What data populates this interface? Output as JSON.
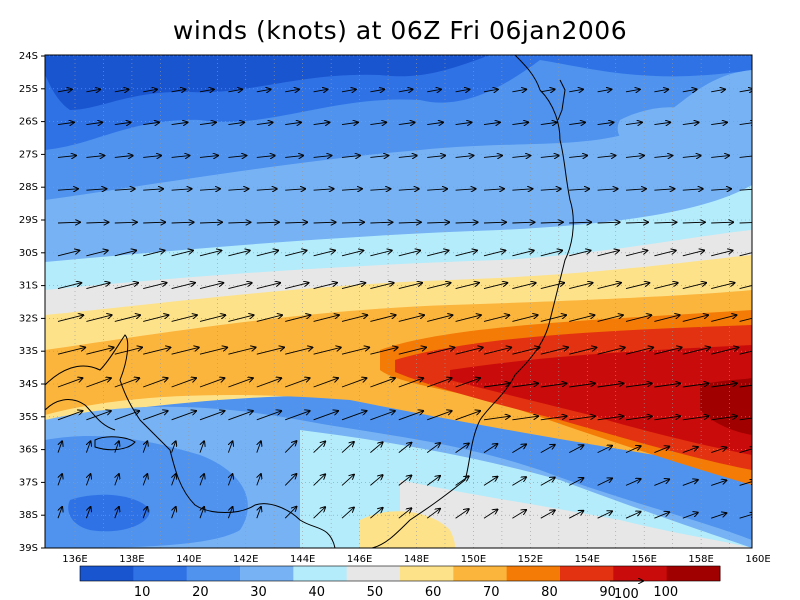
{
  "title": "winds (knots) at 06Z Fri 06jan2006",
  "lat_labels": [
    "24S",
    "25S",
    "26S",
    "27S",
    "28S",
    "29S",
    "30S",
    "31S",
    "32S",
    "33S",
    "34S",
    "35S",
    "36S",
    "37S",
    "38S",
    "39S"
  ],
  "lon_labels": [
    "136E",
    "138E",
    "140E",
    "142E",
    "144E",
    "146E",
    "148E",
    "150E",
    "152E",
    "154E",
    "156E",
    "158E",
    "160E"
  ],
  "colorbar": {
    "labels": [
      "10",
      "20",
      "30",
      "40",
      "50",
      "60",
      "70",
      "80",
      "90",
      "100"
    ],
    "colors": [
      "#1a55d0",
      "#2f72e6",
      "#4f93ee",
      "#77b2f4",
      "#b4ecfb",
      "#e7e7e7",
      "#fde28a",
      "#fbb43c",
      "#f37b06",
      "#e23211",
      "#ca0b0b",
      "#a00000"
    ]
  },
  "vector_ref": {
    "value": "100"
  },
  "chart_data": {
    "type": "map",
    "field": "wind speed (knots)",
    "time": "06Z Fri 06jan2006",
    "lon_range": [
      135.2,
      160
    ],
    "lat_range": [
      -39,
      -24
    ],
    "contour_levels": [
      10,
      20,
      30,
      40,
      50,
      60,
      70,
      80,
      90,
      100
    ],
    "jet_core": {
      "max_speed": 100,
      "lat_range": [
        -36,
        -33
      ],
      "lon_range": [
        150,
        160
      ]
    }
  }
}
